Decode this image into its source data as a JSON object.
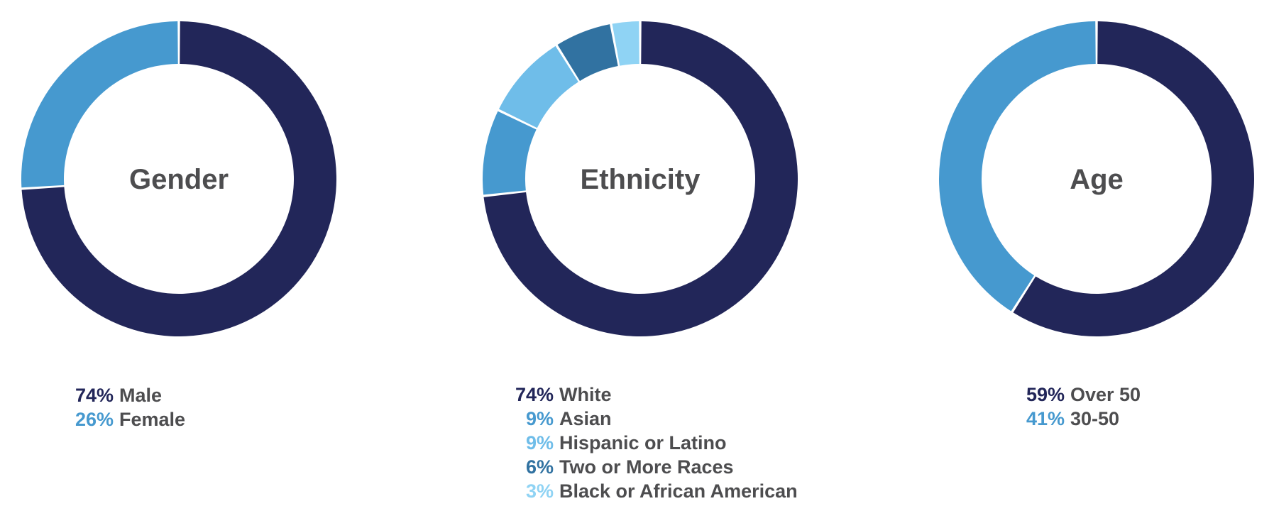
{
  "chart_data": [
    {
      "type": "donut",
      "title": "Gender",
      "slices": [
        {
          "pct_label": "74%",
          "label": "Male",
          "value": 74,
          "color": "#222659"
        },
        {
          "pct_label": "26%",
          "label": "Female",
          "value": 26,
          "color": "#4699cf"
        }
      ]
    },
    {
      "type": "donut",
      "title": "Ethnicity",
      "slices": [
        {
          "pct_label": "74%",
          "label": "White",
          "value": 74,
          "color": "#222659"
        },
        {
          "pct_label": "9%",
          "label": "Asian",
          "value": 9,
          "color": "#4699cf"
        },
        {
          "pct_label": "9%",
          "label": "Hispanic or Latino",
          "value": 9,
          "color": "#6fbde9"
        },
        {
          "pct_label": "6%",
          "label": "Two or More Races",
          "value": 6,
          "color": "#3172a1"
        },
        {
          "pct_label": "3%",
          "label": "Black or African American",
          "value": 3,
          "color": "#8fd3f4"
        }
      ]
    },
    {
      "type": "donut",
      "title": "Age",
      "slices": [
        {
          "pct_label": "59%",
          "label": "Over 50",
          "value": 59,
          "color": "#222659"
        },
        {
          "pct_label": "41%",
          "label": "30-50",
          "value": 41,
          "color": "#4699cf"
        }
      ]
    }
  ]
}
